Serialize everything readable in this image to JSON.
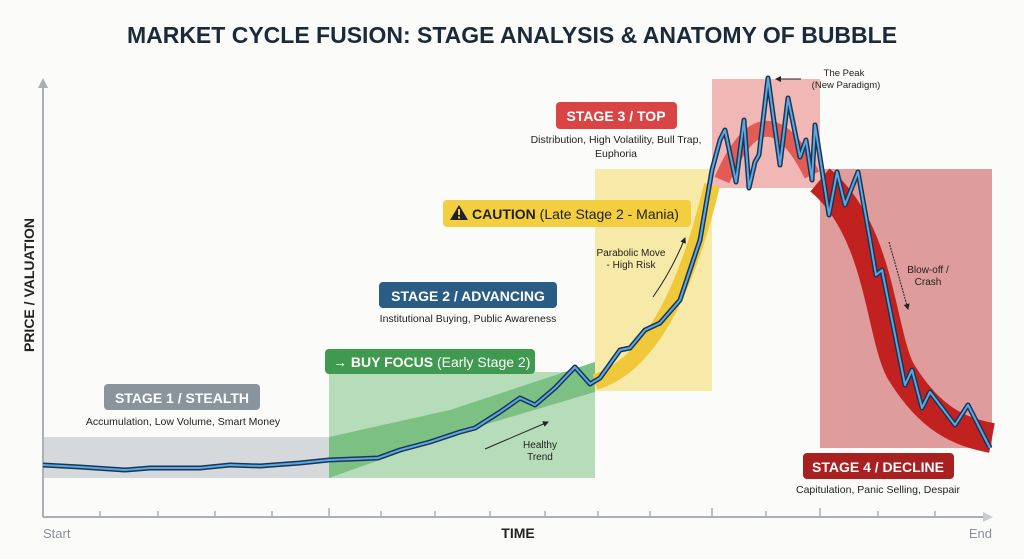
{
  "title": "MARKET CYCLE FUSION: STAGE ANALYSIS & ANATOMY OF BUBBLE",
  "axes": {
    "y_label": "PRICE / VALUATION",
    "x_label": "TIME",
    "x_start": "Start",
    "x_end": "End"
  },
  "stages": {
    "stage1": {
      "label": "STAGE 1 / STEALTH",
      "desc": "Accumulation, Low Volume, Smart Money",
      "color": "#8a949c"
    },
    "stage2": {
      "label": "STAGE 2 / ADVANCING",
      "desc": "Institutional Buying, Public Awareness",
      "color": "#2a5d86"
    },
    "buy_focus": {
      "arrow": "→",
      "label": "BUY FOCUS",
      "paren": "(Early Stage 2)",
      "color": "#3f9a4f"
    },
    "caution": {
      "icon": "warning-icon",
      "label": "CAUTION",
      "paren": "(Late Stage 2 - Mania)",
      "color": "#f3cf3f"
    },
    "stage3": {
      "label": "STAGE 3 / TOP",
      "desc_line1": "Distribution, High Volatility, Bull Trap,",
      "desc_line2": "Euphoria",
      "color": "#d94545"
    },
    "stage4": {
      "label": "STAGE 4 / DECLINE",
      "desc": "Capitulation, Panic Selling, Despair",
      "color": "#a8201f"
    }
  },
  "annotations": {
    "healthy": [
      "Healthy",
      "Trend"
    ],
    "parabolic": [
      "Parabolic Move",
      "- High Risk"
    ],
    "peak": [
      "The Peak",
      "(New Paradigm)"
    ],
    "crash": [
      "Blow-off /",
      "Crash"
    ]
  },
  "colors": {
    "price_line": "#5aa8e0",
    "price_outline": "#1c3556"
  }
}
